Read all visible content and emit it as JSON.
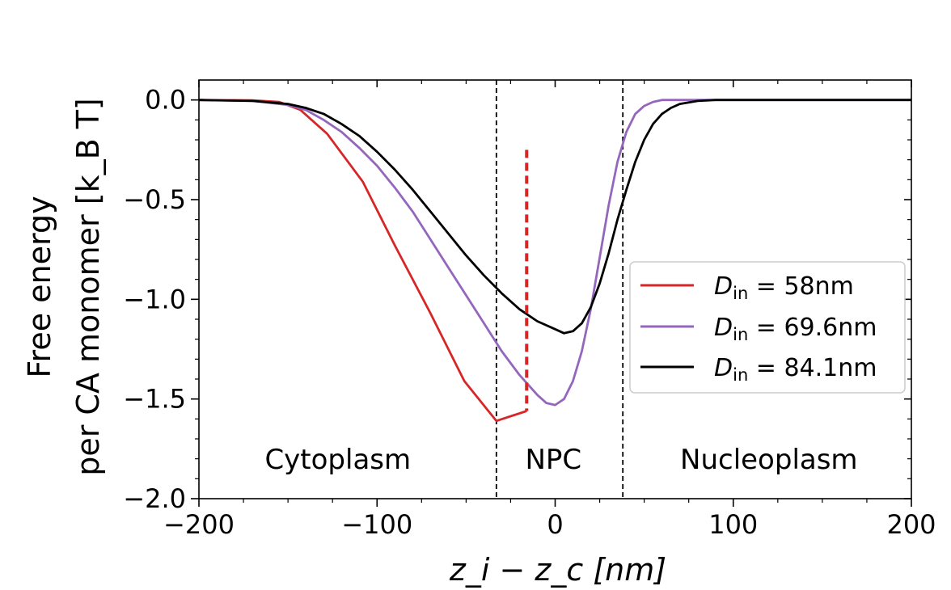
{
  "chart_data": {
    "type": "line",
    "title": "",
    "xlabel": "z_i − z_c [nm]",
    "ylabel_line1": "Free energy",
    "ylabel_line2": "per CA monomer [k_B T]",
    "xlim": [
      -200,
      200
    ],
    "ylim": [
      -2.0,
      0.1
    ],
    "xticks": [
      -200,
      -100,
      0,
      100,
      200
    ],
    "xtick_labels": [
      "−200",
      "−100",
      "0",
      "100",
      "200"
    ],
    "yticks": [
      0.0,
      -0.5,
      -1.0,
      -1.5,
      -2.0
    ],
    "ytick_labels": [
      "0.0",
      "−0.5",
      "−1.0",
      "−1.5",
      "−2.0"
    ],
    "grid": false,
    "legend_position": "center-right",
    "regions": [
      {
        "label": "Cytoplasm",
        "x": -122
      },
      {
        "label": "NPC",
        "x": -1
      },
      {
        "label": "Nucleoplasm",
        "x": 120
      }
    ],
    "boundaries": [
      -33,
      38
    ],
    "red_marker": {
      "x": -16,
      "y_top": -0.25,
      "y_bottom": -1.56,
      "style": "dashed"
    },
    "series": [
      {
        "name": "D_in = 58nm",
        "legend_sym": "D",
        "legend_sub": "in",
        "legend_value": " = 58nm",
        "color": "#d62728",
        "x": [
          -200,
          -170,
          -155,
          -143,
          -128,
          -108,
          -90,
          -70,
          -51,
          -33,
          -16
        ],
        "y": [
          0,
          -0.002,
          -0.01,
          -0.05,
          -0.17,
          -0.41,
          -0.73,
          -1.07,
          -1.41,
          -1.61,
          -1.56
        ]
      },
      {
        "name": "D_in = 69.6nm",
        "legend_sym": "D",
        "legend_sub": "in",
        "legend_value": " = 69.6nm",
        "color": "#9467bd",
        "x": [
          -200,
          -170,
          -150,
          -140,
          -130,
          -120,
          -110,
          -100,
          -90,
          -80,
          -70,
          -60,
          -50,
          -40,
          -30,
          -20,
          -10,
          -5,
          0,
          5,
          10,
          15,
          20,
          25,
          30,
          35,
          40,
          45,
          50,
          55,
          60,
          70,
          80,
          100,
          150,
          200
        ],
        "y": [
          0,
          -0.004,
          -0.025,
          -0.05,
          -0.1,
          -0.16,
          -0.24,
          -0.33,
          -0.44,
          -0.56,
          -0.7,
          -0.84,
          -0.98,
          -1.12,
          -1.26,
          -1.38,
          -1.48,
          -1.52,
          -1.53,
          -1.5,
          -1.41,
          -1.26,
          -1.05,
          -0.79,
          -0.53,
          -0.31,
          -0.16,
          -0.07,
          -0.03,
          -0.01,
          0,
          0,
          0,
          0,
          0,
          0
        ]
      },
      {
        "name": "D_in = 84.1nm",
        "legend_sym": "D",
        "legend_sub": "in",
        "legend_value": " = 84.1nm",
        "color": "#000000",
        "x": [
          -200,
          -170,
          -150,
          -140,
          -130,
          -120,
          -110,
          -100,
          -90,
          -80,
          -70,
          -60,
          -50,
          -40,
          -30,
          -20,
          -10,
          0,
          5,
          10,
          15,
          20,
          25,
          30,
          35,
          40,
          45,
          50,
          55,
          60,
          65,
          70,
          80,
          90,
          100,
          150,
          200
        ],
        "y": [
          0,
          -0.005,
          -0.02,
          -0.04,
          -0.07,
          -0.12,
          -0.18,
          -0.26,
          -0.35,
          -0.45,
          -0.56,
          -0.67,
          -0.78,
          -0.88,
          -0.97,
          -1.05,
          -1.11,
          -1.15,
          -1.17,
          -1.16,
          -1.12,
          -1.04,
          -0.92,
          -0.77,
          -0.6,
          -0.45,
          -0.31,
          -0.2,
          -0.12,
          -0.07,
          -0.04,
          -0.02,
          -0.005,
          0,
          0,
          0,
          0
        ]
      }
    ]
  }
}
